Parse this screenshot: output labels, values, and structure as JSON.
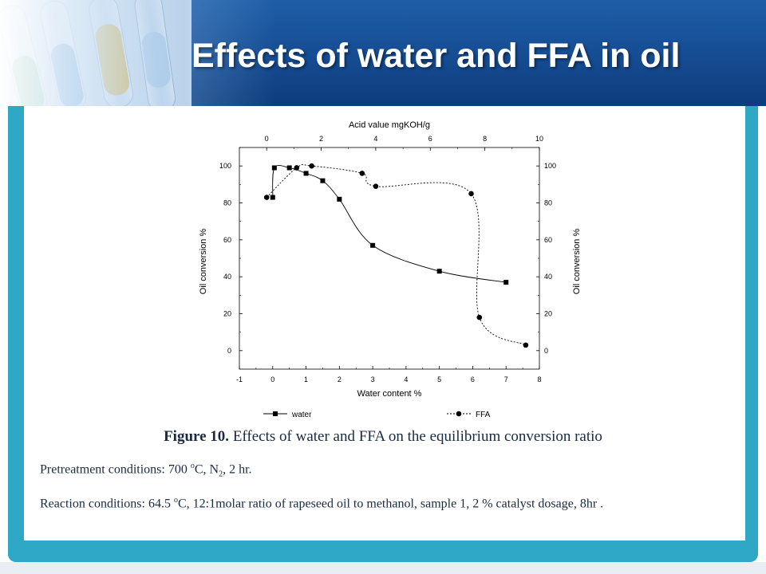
{
  "slide": {
    "title": "Effects of water and FFA in oil",
    "figure_label": "Figure 10.",
    "figure_caption": "Effects of water and FFA on the equilibrium conversion ratio",
    "pretreatment": {
      "prefix": "Pretreatment conditions: 700 ",
      "sup": "o",
      "mid": "C, N",
      "sub": "2",
      "suffix": ", 2 hr."
    },
    "reaction": {
      "prefix": "Reaction conditions: 64.5 ",
      "sup": "o",
      "suffix": "C, 12:1molar ratio of rapeseed oil to methanol, sample 1, 2 % catalyst dosage, 8hr ."
    },
    "colors": {
      "header_blue": "#1e5ea8",
      "frame_teal": "#2fa8c8"
    }
  },
  "chart_data": {
    "type": "line",
    "top_xlabel": "Acid value   mgKOH/g",
    "xlabel": "Water content   %",
    "ylabel_left": "Oil conversion   %",
    "ylabel_right": "Oil conversion   %",
    "xlim": [
      -1,
      8
    ],
    "top_xlim": [
      -1,
      10
    ],
    "ylim": [
      -10,
      110
    ],
    "xticks": [
      "-1",
      "0",
      "1",
      "2",
      "3",
      "4",
      "5",
      "6",
      "7",
      "8"
    ],
    "top_xticks": [
      "0",
      "2",
      "4",
      "6",
      "8",
      "10"
    ],
    "yticks": [
      "0",
      "20",
      "40",
      "60",
      "80",
      "100"
    ],
    "legend_position": "bottom",
    "series": [
      {
        "name": "water",
        "axis": "bottom",
        "marker": "square",
        "x": [
          0,
          0.05,
          0.5,
          1,
          1.5,
          2,
          3,
          5,
          7
        ],
        "y": [
          83,
          99,
          99,
          96,
          92,
          82,
          57,
          43,
          37
        ]
      },
      {
        "name": "FFA",
        "axis": "top",
        "marker": "circle",
        "x": [
          0,
          1.1,
          1.65,
          3.5,
          4,
          7.5,
          7.8,
          9.5
        ],
        "y": [
          83,
          99,
          100,
          96,
          89,
          85,
          18,
          3
        ]
      }
    ]
  }
}
